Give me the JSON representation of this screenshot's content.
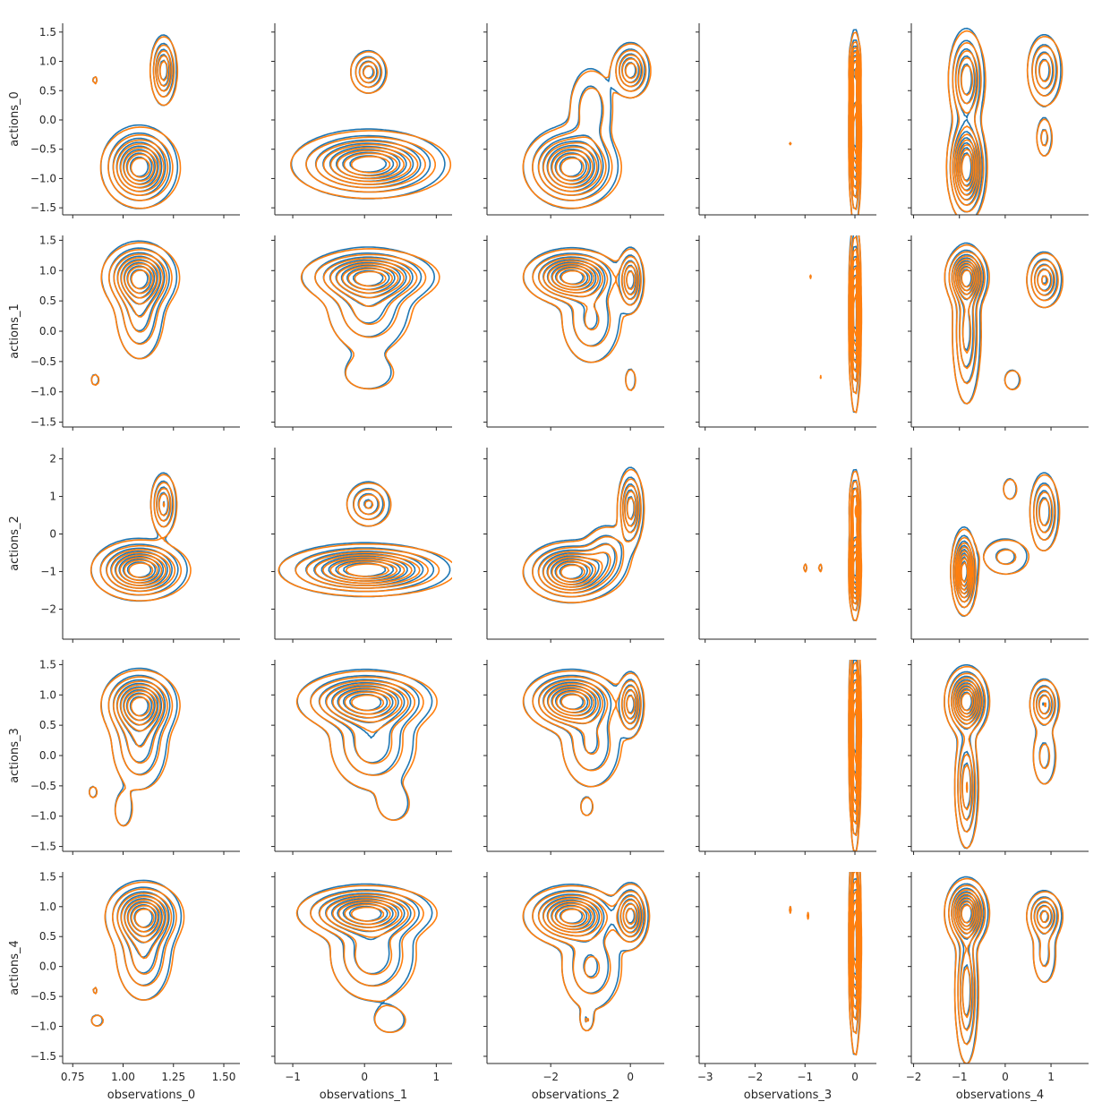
{
  "chart_data": {
    "type": "kde-contour-grid",
    "rows": [
      "actions_0",
      "actions_1",
      "actions_2",
      "actions_3",
      "actions_4"
    ],
    "cols": [
      "observations_0",
      "observations_1",
      "observations_2",
      "observations_3",
      "observations_4"
    ],
    "series_colors": [
      "#1f77b4",
      "#ff7f0e"
    ],
    "x_axes": [
      {
        "label": "observations_0",
        "lim": [
          0.7,
          1.58
        ],
        "ticks": [
          0.75,
          1.0,
          1.25,
          1.5
        ],
        "tick_labels": [
          "0.75",
          "1.00",
          "1.25",
          "1.50"
        ]
      },
      {
        "label": "observations_1",
        "lim": [
          -1.25,
          1.22
        ],
        "ticks": [
          -1,
          0,
          1
        ],
        "tick_labels": [
          "−1",
          "0",
          "1"
        ]
      },
      {
        "label": "observations_2",
        "lim": [
          -3.6,
          0.85
        ],
        "ticks": [
          -2,
          0
        ],
        "tick_labels": [
          "−2",
          "0"
        ]
      },
      {
        "label": "observations_3",
        "lim": [
          -3.12,
          0.43
        ],
        "ticks": [
          -3,
          -2,
          -1,
          0
        ],
        "tick_labels": [
          "−3",
          "−2",
          "−1",
          "0"
        ]
      },
      {
        "label": "observations_4",
        "lim": [
          -2.05,
          1.82
        ],
        "ticks": [
          -2,
          -1,
          0,
          1
        ],
        "tick_labels": [
          "−2",
          "−1",
          "0",
          "1"
        ]
      }
    ],
    "y_axes": [
      {
        "label": "actions_0",
        "lim": [
          -1.62,
          1.65
        ],
        "ticks": [
          -1.5,
          -1.0,
          -0.5,
          0.0,
          0.5,
          1.0,
          1.5
        ],
        "tick_labels": [
          "−1.5",
          "−1.0",
          "−0.5",
          "0.0",
          "0.5",
          "1.0",
          "1.5"
        ]
      },
      {
        "label": "actions_1",
        "lim": [
          -1.58,
          1.58
        ],
        "ticks": [
          -1.5,
          -1.0,
          -0.5,
          0.0,
          0.5,
          1.0,
          1.5
        ],
        "tick_labels": [
          "−1.5",
          "−1.0",
          "−0.5",
          "0.0",
          "0.5",
          "1.0",
          "1.5"
        ]
      },
      {
        "label": "actions_2",
        "lim": [
          -2.8,
          2.3
        ],
        "ticks": [
          -2,
          -1,
          0,
          1,
          2
        ],
        "tick_labels": [
          "−2",
          "−1",
          "0",
          "1",
          "2"
        ]
      },
      {
        "label": "actions_3",
        "lim": [
          -1.58,
          1.58
        ],
        "ticks": [
          -1.5,
          -1.0,
          -0.5,
          0.0,
          0.5,
          1.0,
          1.5
        ],
        "tick_labels": [
          "−1.5",
          "−1.0",
          "−0.5",
          "0.0",
          "0.5",
          "1.0",
          "1.5"
        ]
      },
      {
        "label": "actions_4",
        "lim": [
          -1.62,
          1.58
        ],
        "ticks": [
          -1.5,
          -1.0,
          -0.5,
          0.0,
          0.5,
          1.0,
          1.5
        ],
        "tick_labels": [
          "−1.5",
          "−1.0",
          "−0.5",
          "0.0",
          "0.5",
          "1.0",
          "1.5"
        ]
      }
    ],
    "contour_levels": [
      0.06,
      0.16,
      0.27,
      0.38,
      0.5,
      0.62,
      0.74,
      0.86
    ],
    "cells": [
      {
        "r": 0,
        "c": 0,
        "blobs": [
          [
            1.08,
            -0.8,
            0.08,
            0.3,
            1
          ],
          [
            1.2,
            0.85,
            0.03,
            0.28,
            0.6
          ],
          [
            0.86,
            0.68,
            0.01,
            0.06,
            0.1
          ]
        ]
      },
      {
        "r": 0,
        "c": 1,
        "blobs": [
          [
            0.05,
            -0.75,
            0.45,
            0.25,
            1
          ],
          [
            0.05,
            0.82,
            0.12,
            0.18,
            0.45
          ]
        ]
      },
      {
        "r": 0,
        "c": 2,
        "blobs": [
          [
            -1.5,
            -0.8,
            0.5,
            0.3,
            1
          ],
          [
            0.0,
            0.85,
            0.22,
            0.22,
            0.6
          ],
          [
            -1.0,
            0.2,
            0.3,
            0.4,
            0.25
          ]
        ]
      },
      {
        "r": 0,
        "c": 3,
        "blobs": [
          [
            0.0,
            -0.2,
            0.05,
            0.7,
            1
          ],
          [
            0.0,
            0.9,
            0.05,
            0.25,
            0.5
          ],
          [
            -1.3,
            -0.4,
            0.02,
            0.03,
            0.08
          ]
        ]
      },
      {
        "r": 0,
        "c": 4,
        "blobs": [
          [
            -0.85,
            -0.8,
            0.18,
            0.4,
            1
          ],
          [
            -0.85,
            0.7,
            0.18,
            0.4,
            0.6
          ],
          [
            0.85,
            0.85,
            0.18,
            0.3,
            0.45
          ],
          [
            0.85,
            -0.3,
            0.1,
            0.2,
            0.2
          ]
        ]
      },
      {
        "r": 1,
        "c": 0,
        "blobs": [
          [
            1.08,
            0.9,
            0.08,
            0.25,
            1
          ],
          [
            1.08,
            0.3,
            0.06,
            0.4,
            0.4
          ],
          [
            0.86,
            -0.8,
            0.02,
            0.1,
            0.1
          ]
        ]
      },
      {
        "r": 1,
        "c": 1,
        "blobs": [
          [
            0.05,
            0.9,
            0.4,
            0.2,
            1
          ],
          [
            0.05,
            0.4,
            0.3,
            0.4,
            0.4
          ],
          [
            0.05,
            -0.7,
            0.25,
            0.2,
            0.15
          ]
        ]
      },
      {
        "r": 1,
        "c": 2,
        "blobs": [
          [
            -1.5,
            0.9,
            0.5,
            0.2,
            1
          ],
          [
            0.0,
            0.85,
            0.15,
            0.25,
            0.6
          ],
          [
            -1.0,
            0.2,
            0.4,
            0.4,
            0.3
          ],
          [
            0.0,
            -0.8,
            0.1,
            0.15,
            0.12
          ]
        ]
      },
      {
        "r": 1,
        "c": 3,
        "blobs": [
          [
            0.0,
            0.3,
            0.05,
            0.7,
            1
          ],
          [
            -0.9,
            0.9,
            0.02,
            0.05,
            0.08
          ],
          [
            -0.7,
            -0.75,
            0.02,
            0.05,
            0.08
          ]
        ]
      },
      {
        "r": 1,
        "c": 4,
        "blobs": [
          [
            -0.85,
            0.9,
            0.2,
            0.22,
            1
          ],
          [
            -0.85,
            0.0,
            0.15,
            0.6,
            0.5
          ],
          [
            0.85,
            0.85,
            0.18,
            0.22,
            0.6
          ],
          [
            0.15,
            -0.8,
            0.15,
            0.15,
            0.12
          ]
        ]
      },
      {
        "r": 2,
        "c": 0,
        "blobs": [
          [
            1.08,
            -0.95,
            0.1,
            0.35,
            1
          ],
          [
            1.2,
            0.8,
            0.03,
            0.4,
            0.5
          ]
        ]
      },
      {
        "r": 2,
        "c": 1,
        "blobs": [
          [
            0.0,
            -0.95,
            0.5,
            0.3,
            1
          ],
          [
            0.05,
            0.8,
            0.15,
            0.3,
            0.4
          ]
        ]
      },
      {
        "r": 2,
        "c": 2,
        "blobs": [
          [
            -1.5,
            -1.0,
            0.5,
            0.35,
            1
          ],
          [
            0.0,
            0.7,
            0.15,
            0.5,
            0.6
          ],
          [
            -0.6,
            -0.5,
            0.3,
            0.4,
            0.3
          ]
        ]
      },
      {
        "r": 2,
        "c": 3,
        "blobs": [
          [
            0.0,
            -0.9,
            0.05,
            0.6,
            1
          ],
          [
            0.0,
            0.7,
            0.05,
            0.5,
            0.5
          ],
          [
            -1.0,
            -0.9,
            0.03,
            0.1,
            0.1
          ],
          [
            -0.7,
            -0.9,
            0.03,
            0.1,
            0.1
          ]
        ]
      },
      {
        "r": 2,
        "c": 4,
        "blobs": [
          [
            -0.9,
            -1.0,
            0.12,
            0.5,
            1
          ],
          [
            0.85,
            0.6,
            0.15,
            0.5,
            0.5
          ],
          [
            0.0,
            -0.6,
            0.3,
            0.3,
            0.2
          ],
          [
            0.1,
            1.2,
            0.1,
            0.2,
            0.15
          ]
        ]
      },
      {
        "r": 3,
        "c": 0,
        "blobs": [
          [
            1.08,
            0.85,
            0.08,
            0.25,
            1
          ],
          [
            1.08,
            0.2,
            0.07,
            0.4,
            0.4
          ],
          [
            0.85,
            -0.6,
            0.02,
            0.1,
            0.1
          ],
          [
            1.0,
            -0.9,
            0.03,
            0.2,
            0.15
          ]
        ]
      },
      {
        "r": 3,
        "c": 1,
        "blobs": [
          [
            0.0,
            0.9,
            0.4,
            0.22,
            1
          ],
          [
            0.1,
            0.2,
            0.3,
            0.4,
            0.4
          ],
          [
            0.4,
            -0.8,
            0.15,
            0.2,
            0.15
          ]
        ]
      },
      {
        "r": 3,
        "c": 2,
        "blobs": [
          [
            -1.5,
            0.9,
            0.5,
            0.22,
            1
          ],
          [
            0.0,
            0.85,
            0.15,
            0.25,
            0.6
          ],
          [
            -1.0,
            0.2,
            0.4,
            0.4,
            0.3
          ],
          [
            -1.1,
            -0.85,
            0.1,
            0.1,
            0.15
          ]
        ]
      },
      {
        "r": 3,
        "c": 3,
        "blobs": [
          [
            0.0,
            0.5,
            0.05,
            0.7,
            1
          ],
          [
            0.0,
            -0.6,
            0.04,
            0.5,
            0.4
          ],
          [
            -0.95,
            0.95,
            0.01,
            0.02,
            0.08
          ]
        ]
      },
      {
        "r": 3,
        "c": 4,
        "blobs": [
          [
            -0.85,
            0.9,
            0.2,
            0.25,
            1
          ],
          [
            -0.85,
            -0.5,
            0.12,
            0.5,
            0.5
          ],
          [
            0.85,
            0.85,
            0.15,
            0.2,
            0.5
          ],
          [
            0.85,
            0.0,
            0.15,
            0.3,
            0.2
          ]
        ]
      },
      {
        "r": 4,
        "c": 0,
        "blobs": [
          [
            1.1,
            0.85,
            0.08,
            0.25,
            1
          ],
          [
            1.1,
            0.2,
            0.07,
            0.4,
            0.4
          ],
          [
            0.86,
            -0.4,
            0.01,
            0.06,
            0.1
          ],
          [
            0.87,
            -0.9,
            0.03,
            0.1,
            0.1
          ]
        ]
      },
      {
        "r": 4,
        "c": 1,
        "blobs": [
          [
            0.0,
            0.9,
            0.4,
            0.2,
            1
          ],
          [
            0.1,
            0.2,
            0.3,
            0.4,
            0.4
          ],
          [
            0.35,
            -0.9,
            0.15,
            0.15,
            0.15
          ]
        ]
      },
      {
        "r": 4,
        "c": 2,
        "blobs": [
          [
            -1.5,
            0.85,
            0.5,
            0.22,
            1
          ],
          [
            0.0,
            0.85,
            0.2,
            0.25,
            0.7
          ],
          [
            -1.0,
            0.0,
            0.4,
            0.4,
            0.3
          ],
          [
            -1.1,
            -0.9,
            0.1,
            0.12,
            0.15
          ]
        ]
      },
      {
        "r": 4,
        "c": 3,
        "blobs": [
          [
            0.0,
            0.4,
            0.05,
            0.8,
            1
          ],
          [
            -1.3,
            0.95,
            0.02,
            0.07,
            0.08
          ],
          [
            -0.95,
            0.85,
            0.02,
            0.08,
            0.08
          ]
        ]
      },
      {
        "r": 4,
        "c": 4,
        "blobs": [
          [
            -0.85,
            0.9,
            0.2,
            0.25,
            1
          ],
          [
            -0.85,
            -0.4,
            0.12,
            0.6,
            0.5
          ],
          [
            0.85,
            0.85,
            0.18,
            0.2,
            0.55
          ],
          [
            0.85,
            0.2,
            0.15,
            0.3,
            0.2
          ]
        ]
      }
    ]
  }
}
